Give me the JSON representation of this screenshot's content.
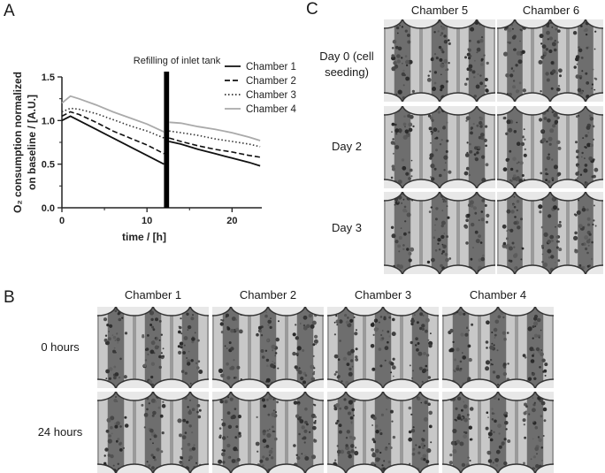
{
  "panels": {
    "a": "A",
    "b": "B",
    "c": "C"
  },
  "chart_data": {
    "type": "line",
    "xlabel": "time / [h]",
    "ylabel_line1": "O₂ consumption normalized",
    "ylabel_line2": "on baseline / [A.U.]",
    "xlim": [
      0,
      23.5
    ],
    "ylim": [
      0,
      1.5
    ],
    "xticks": [
      0,
      10,
      20
    ],
    "yticks": [
      0.0,
      0.5,
      1.0,
      1.5
    ],
    "annotation": "Refilling of inlet tank",
    "refill_interval_h": [
      12.0,
      12.6
    ],
    "legend_position": "top-right",
    "grid": false,
    "series": [
      {
        "name": "Chamber 1",
        "style": "solid",
        "color": "#111111",
        "segments": [
          {
            "x": [
              0,
              1,
              2,
              4,
              6,
              8,
              10,
              12
            ],
            "y": [
              1.0,
              1.05,
              1.0,
              0.9,
              0.8,
              0.7,
              0.6,
              0.5
            ]
          },
          {
            "x": [
              12.6,
              14,
              16,
              18,
              20,
              22,
              23.3
            ],
            "y": [
              0.76,
              0.73,
              0.67,
              0.62,
              0.57,
              0.52,
              0.48
            ]
          }
        ]
      },
      {
        "name": "Chamber 2",
        "style": "dashed",
        "color": "#111111",
        "segments": [
          {
            "x": [
              0,
              1,
              2,
              4,
              6,
              8,
              10,
              12
            ],
            "y": [
              1.05,
              1.1,
              1.07,
              0.98,
              0.88,
              0.8,
              0.72,
              0.62
            ]
          },
          {
            "x": [
              12.6,
              14,
              16,
              18,
              20,
              22,
              23.3
            ],
            "y": [
              0.8,
              0.76,
              0.71,
              0.67,
              0.64,
              0.6,
              0.58
            ]
          }
        ]
      },
      {
        "name": "Chamber 3",
        "style": "dotted",
        "color": "#333333",
        "segments": [
          {
            "x": [
              0,
              1,
              2,
              4,
              6,
              8,
              10,
              12
            ],
            "y": [
              1.1,
              1.14,
              1.13,
              1.08,
              1.01,
              0.94,
              0.88,
              0.8
            ]
          },
          {
            "x": [
              12.6,
              14,
              16,
              18,
              20,
              22,
              23.3
            ],
            "y": [
              0.88,
              0.86,
              0.83,
              0.79,
              0.76,
              0.73,
              0.7
            ]
          }
        ]
      },
      {
        "name": "Chamber 4",
        "style": "solid",
        "color": "#aaaaaa",
        "segments": [
          {
            "x": [
              0,
              1,
              2,
              4,
              6,
              8,
              10,
              12
            ],
            "y": [
              1.2,
              1.28,
              1.25,
              1.18,
              1.1,
              1.03,
              0.96,
              0.87
            ]
          },
          {
            "x": [
              12.6,
              14,
              16,
              18,
              20,
              22,
              23.3
            ],
            "y": [
              0.98,
              0.97,
              0.93,
              0.9,
              0.86,
              0.81,
              0.77
            ]
          }
        ]
      }
    ]
  },
  "panel_b": {
    "columns": [
      "Chamber 1",
      "Chamber 2",
      "Chamber 3",
      "Chamber 4"
    ],
    "rows": [
      "0 hours",
      "24 hours"
    ]
  },
  "panel_c": {
    "columns": [
      "Chamber 5",
      "Chamber 6"
    ],
    "rows": [
      "Day 0 (cell seeding)",
      "Day 2",
      "Day 3"
    ]
  }
}
